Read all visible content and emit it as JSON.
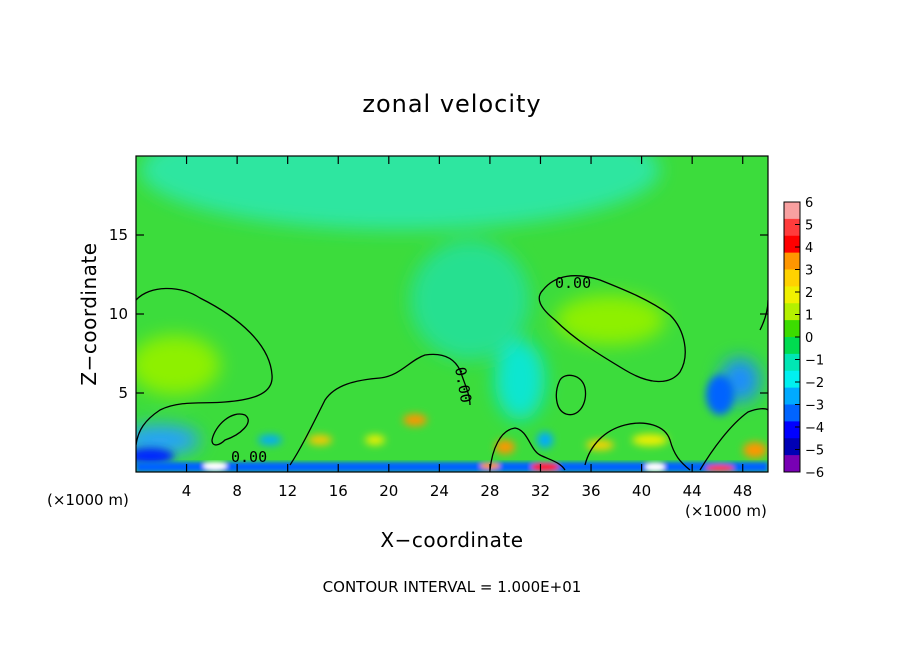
{
  "chart_data": {
    "type": "heatmap",
    "title": "zonal velocity",
    "xlabel": "X−coordinate",
    "ylabel": "Z−coordinate",
    "x_unit_left": "(×1000 m)",
    "x_unit_right": "(×1000 m)",
    "xlim": [
      0,
      50
    ],
    "ylim": [
      0,
      20
    ],
    "x_ticks": [
      4,
      8,
      12,
      16,
      20,
      24,
      28,
      32,
      36,
      40,
      44,
      48
    ],
    "x_tick_labels": [
      "4",
      "8",
      "12",
      "16",
      "20",
      "24",
      "28",
      "32",
      "36",
      "40",
      "44",
      "48"
    ],
    "y_ticks": [
      5,
      10,
      15
    ],
    "y_tick_labels": [
      "5",
      "10",
      "15"
    ],
    "colorbar": {
      "min": -6,
      "max": 6,
      "labels": [
        "6",
        "5",
        "4",
        "3",
        "2",
        "1",
        "0",
        "−1",
        "−2",
        "−3",
        "−4",
        "−5",
        "−6"
      ],
      "colors": [
        "#f8a0a0",
        "#ff3c3c",
        "#ff0000",
        "#ff9600",
        "#ffd200",
        "#f0f000",
        "#b4f000",
        "#3cdc00",
        "#00dc50",
        "#00e6b4",
        "#00f0f0",
        "#00aaff",
        "#0064ff",
        "#0000ff",
        "#0000b4",
        "#7800b4"
      ]
    },
    "contour_label": "0.00",
    "contour_interval_text": "CONTOUR INTERVAL = 1.000E+01"
  }
}
